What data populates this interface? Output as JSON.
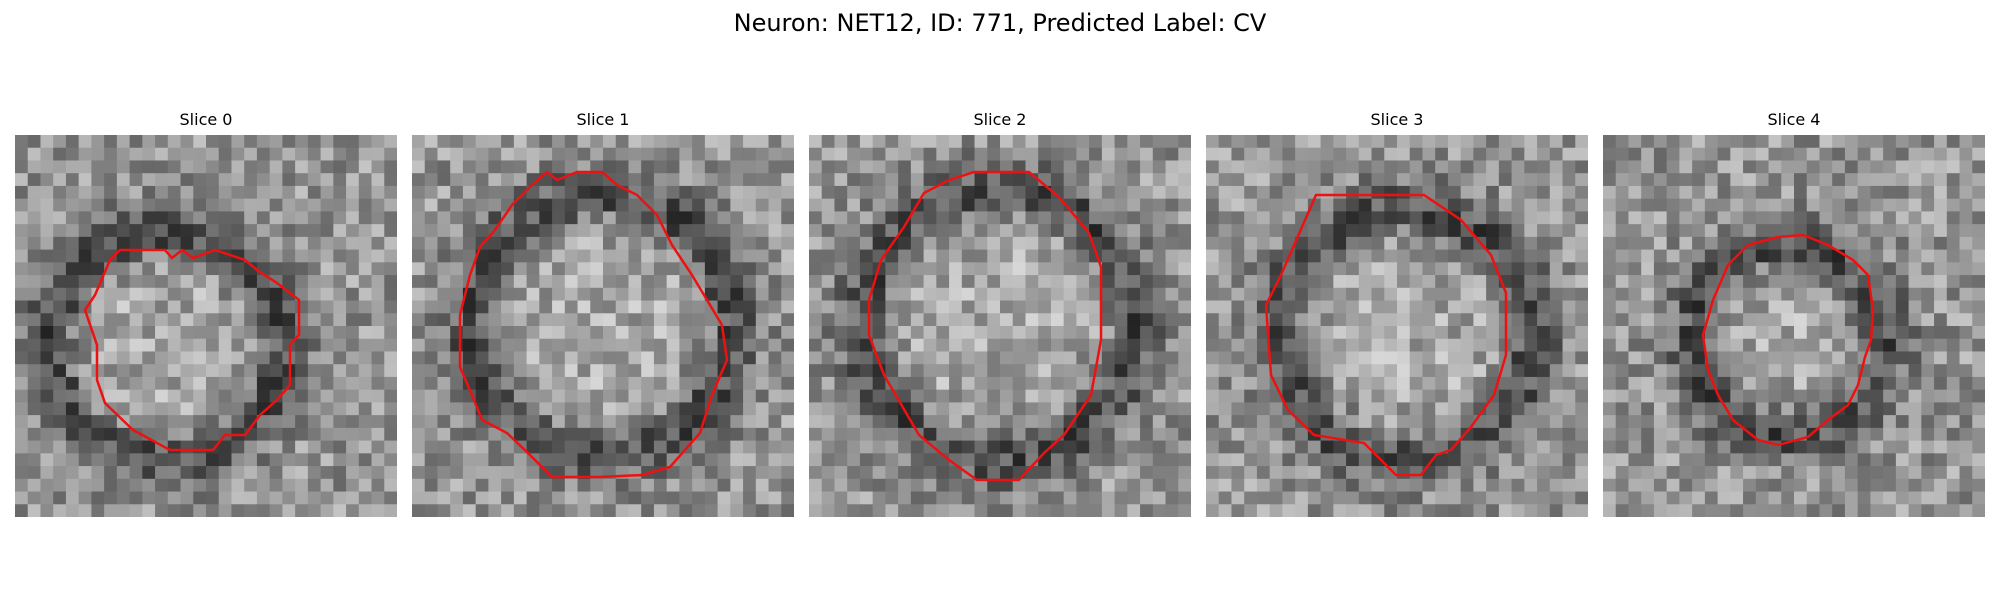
{
  "figure": {
    "title": "Neuron: NET12, ID: 771, Predicted Label: CV",
    "contour_color": "#ee1111"
  },
  "slices": [
    {
      "label": "Slice 0"
    },
    {
      "label": "Slice 1"
    },
    {
      "label": "Slice 2"
    },
    {
      "label": "Slice 3"
    },
    {
      "label": "Slice 4"
    }
  ]
}
